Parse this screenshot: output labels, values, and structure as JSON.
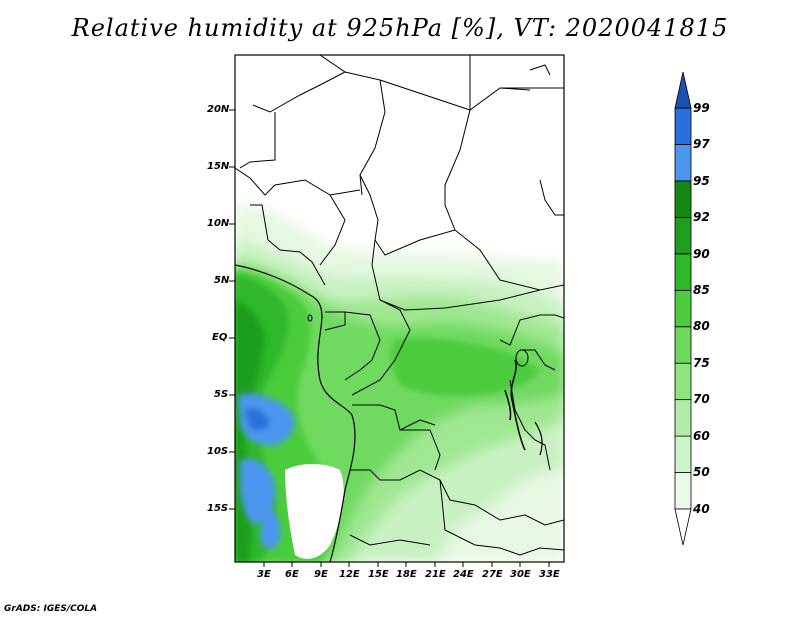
{
  "title": "Relative humidity at 925hPa [%], VT: 2020041815",
  "footer": "GrADS: IGES/COLA",
  "map": {
    "lat_ticks": [
      "20N",
      "15N",
      "10N",
      "5N",
      "EQ",
      "5S",
      "10S",
      "15S"
    ],
    "lon_ticks": [
      "3E",
      "6E",
      "9E",
      "12E",
      "15E",
      "18E",
      "21E",
      "24E",
      "27E",
      "30E",
      "33E"
    ]
  },
  "colorbar": {
    "levels": [
      "40",
      "50",
      "60",
      "70",
      "75",
      "80",
      "85",
      "90",
      "92",
      "95",
      "97",
      "99"
    ],
    "colors": [
      "#ffffff",
      "#e9fbe6",
      "#cdf4c8",
      "#b1eda9",
      "#8fe47f",
      "#6ed95c",
      "#4ccc3c",
      "#2eb82a",
      "#1d9e1f",
      "#158714",
      "#4b96ee",
      "#2a6fdb",
      "#1e50b4"
    ]
  },
  "chart_data": {
    "type": "heatmap",
    "title": "Relative humidity at 925hPa [%], VT: 2020041815",
    "variable": "Relative humidity",
    "units": "%",
    "level": "925hPa",
    "valid_time": "2020041815",
    "xlabel": "",
    "ylabel": "",
    "x_ticks": [
      "3E",
      "6E",
      "9E",
      "12E",
      "15E",
      "18E",
      "21E",
      "24E",
      "27E",
      "30E",
      "33E"
    ],
    "y_ticks": [
      "20N",
      "15N",
      "10N",
      "5N",
      "EQ",
      "5S",
      "10S",
      "15S"
    ],
    "contour_levels": [
      40,
      50,
      60,
      70,
      75,
      80,
      85,
      90,
      92,
      95,
      97,
      99
    ],
    "lon_range": [
      0,
      34.5
    ],
    "lat_range": [
      -19.5,
      24.5
    ]
  }
}
